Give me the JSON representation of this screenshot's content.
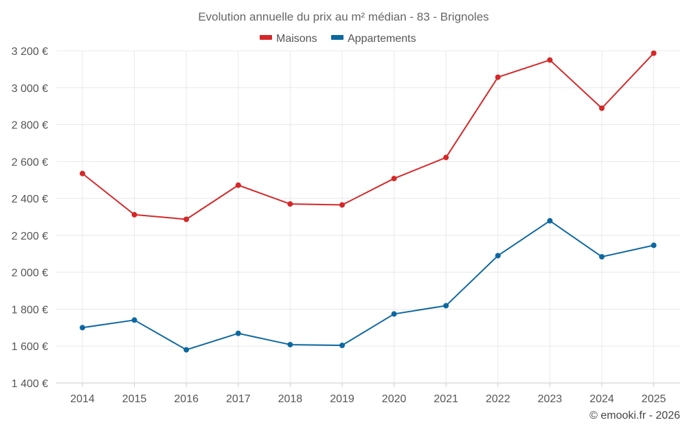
{
  "chart_data": {
    "type": "line",
    "title": "Evolution annuelle du prix au m² médian - 83 - Brignoles",
    "xlabel": "",
    "ylabel": "",
    "categories": [
      "2014",
      "2015",
      "2016",
      "2017",
      "2018",
      "2019",
      "2020",
      "2021",
      "2022",
      "2023",
      "2024",
      "2025"
    ],
    "ylim": [
      1400,
      3200
    ],
    "yticks": [
      1400,
      1600,
      1800,
      2000,
      2200,
      2400,
      2600,
      2800,
      3000,
      3200
    ],
    "ytick_labels": [
      "1 400 €",
      "1 600 €",
      "1 800 €",
      "2 000 €",
      "2 200 €",
      "2 400 €",
      "2 600 €",
      "2 800 €",
      "3 000 €",
      "3 200 €"
    ],
    "grid": true,
    "legend_position": "top-center",
    "series": [
      {
        "name": "Maisons",
        "color": "#d62728",
        "values": [
          2535,
          2312,
          2287,
          2472,
          2370,
          2365,
          2508,
          2622,
          3057,
          3150,
          2889,
          3187
        ]
      },
      {
        "name": "Appartements",
        "color": "#0d67a0",
        "values": [
          1700,
          1741,
          1580,
          1669,
          1608,
          1604,
          1774,
          1819,
          2090,
          2279,
          2084,
          2146
        ]
      }
    ]
  },
  "credit": "© emooki.fr - 2026"
}
